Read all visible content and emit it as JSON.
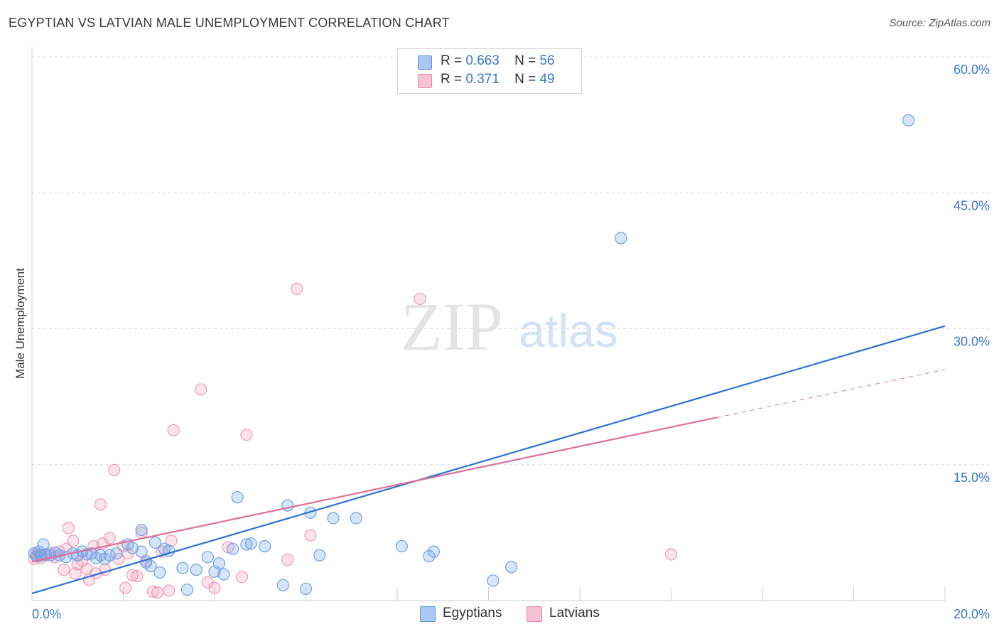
{
  "title": "EGYPTIAN VS LATVIAN MALE UNEMPLOYMENT CORRELATION CHART",
  "source": "Source: ZipAtlas.com",
  "watermark": {
    "zip": "ZIP",
    "atlas": "atlas"
  },
  "legend": {
    "rows": [
      {
        "r_label": "R =",
        "r_value": "0.663",
        "n_label": "N =",
        "n_value": "56",
        "color": "#a9c8f3",
        "border": "#5e93dd"
      },
      {
        "r_label": "R =",
        "r_value": "0.371",
        "n_label": "N =",
        "n_value": "49",
        "color": "#f8c0d3",
        "border": "#e88aab"
      }
    ]
  },
  "bottom_legend": [
    {
      "label": "Egyptians",
      "color": "#a9c8f3",
      "border": "#5e93dd"
    },
    {
      "label": "Latvians",
      "color": "#f8c0d3",
      "border": "#e88aab"
    }
  ],
  "chart_data": {
    "type": "scatter",
    "title": "EGYPTIAN VS LATVIAN MALE UNEMPLOYMENT CORRELATION CHART",
    "xlabel": "",
    "ylabel": "Male Unemployment",
    "xlim": [
      0,
      20
    ],
    "ylim": [
      0,
      60
    ],
    "x_tick_labels": [
      "0.0%",
      "20.0%"
    ],
    "y_ticks": [
      15,
      30,
      45,
      60
    ],
    "y_tick_labels": [
      "15.0%",
      "30.0%",
      "45.0%",
      "60.0%"
    ],
    "grid": true,
    "legend_position": "top-center",
    "series": [
      {
        "name": "Egyptians",
        "color": "#6fa1e6",
        "line_color": "#2e72d2",
        "trend": {
          "x0": 0,
          "y0": 0.8,
          "x1": 20,
          "y1": 30.3
        },
        "points": [
          [
            0.05,
            5.2
          ],
          [
            0.1,
            4.9
          ],
          [
            0.15,
            5.4
          ],
          [
            0.2,
            5.0
          ],
          [
            0.25,
            6.2
          ],
          [
            0.3,
            5.1
          ],
          [
            0.4,
            5.0
          ],
          [
            0.5,
            5.3
          ],
          [
            0.6,
            5.0
          ],
          [
            0.75,
            4.8
          ],
          [
            0.9,
            5.2
          ],
          [
            1.0,
            5.0
          ],
          [
            1.1,
            5.4
          ],
          [
            1.2,
            5.1
          ],
          [
            1.3,
            5.2
          ],
          [
            1.4,
            4.7
          ],
          [
            1.5,
            5.0
          ],
          [
            1.6,
            4.6
          ],
          [
            1.7,
            5.0
          ],
          [
            1.85,
            5.2
          ],
          [
            2.1,
            6.2
          ],
          [
            2.2,
            5.8
          ],
          [
            2.4,
            5.4
          ],
          [
            2.5,
            4.2
          ],
          [
            2.6,
            3.8
          ],
          [
            2.7,
            6.4
          ],
          [
            2.8,
            3.1
          ],
          [
            2.9,
            5.7
          ],
          [
            3.0,
            5.5
          ],
          [
            3.3,
            3.6
          ],
          [
            3.4,
            1.2
          ],
          [
            3.6,
            3.4
          ],
          [
            3.85,
            4.8
          ],
          [
            4.0,
            3.2
          ],
          [
            4.1,
            4.1
          ],
          [
            4.2,
            2.9
          ],
          [
            4.4,
            5.7
          ],
          [
            4.5,
            11.4
          ],
          [
            4.7,
            6.2
          ],
          [
            4.8,
            6.3
          ],
          [
            5.1,
            6.0
          ],
          [
            5.5,
            1.7
          ],
          [
            5.6,
            10.5
          ],
          [
            6.0,
            1.3
          ],
          [
            6.1,
            9.7
          ],
          [
            6.3,
            5.0
          ],
          [
            6.6,
            9.1
          ],
          [
            7.1,
            9.1
          ],
          [
            8.1,
            6.0
          ],
          [
            8.7,
            4.9
          ],
          [
            8.8,
            5.4
          ],
          [
            10.1,
            2.2
          ],
          [
            10.5,
            3.7
          ],
          [
            12.9,
            40.0
          ],
          [
            19.2,
            53.0
          ],
          [
            2.4,
            7.8
          ]
        ]
      },
      {
        "name": "Latvians",
        "color": "#f19ab8",
        "line_color": "#e06e99",
        "trend": {
          "x0": 0,
          "y0": 4.3,
          "x1": 15.0,
          "y1": 20.2
        },
        "trend_dashed": {
          "x0": 15.0,
          "y0": 20.2,
          "x1": 20,
          "y1": 25.5
        },
        "points": [
          [
            0.05,
            4.6
          ],
          [
            0.1,
            5.1
          ],
          [
            0.15,
            4.9
          ],
          [
            0.2,
            4.7
          ],
          [
            0.3,
            5.0
          ],
          [
            0.4,
            5.2
          ],
          [
            0.5,
            4.8
          ],
          [
            0.6,
            5.4
          ],
          [
            0.7,
            3.4
          ],
          [
            0.75,
            5.7
          ],
          [
            0.8,
            8.0
          ],
          [
            0.9,
            6.6
          ],
          [
            0.95,
            3.0
          ],
          [
            1.0,
            4.0
          ],
          [
            1.1,
            4.4
          ],
          [
            1.2,
            3.5
          ],
          [
            1.25,
            2.3
          ],
          [
            1.35,
            6.0
          ],
          [
            1.4,
            3.0
          ],
          [
            1.5,
            10.6
          ],
          [
            1.55,
            6.3
          ],
          [
            1.6,
            3.4
          ],
          [
            1.7,
            6.9
          ],
          [
            1.8,
            14.4
          ],
          [
            1.9,
            4.6
          ],
          [
            2.0,
            6.0
          ],
          [
            2.05,
            1.4
          ],
          [
            2.1,
            5.2
          ],
          [
            2.2,
            2.8
          ],
          [
            2.3,
            2.7
          ],
          [
            2.4,
            7.5
          ],
          [
            2.5,
            4.4
          ],
          [
            2.65,
            1.0
          ],
          [
            2.75,
            0.9
          ],
          [
            2.85,
            5.4
          ],
          [
            3.0,
            1.1
          ],
          [
            3.05,
            6.6
          ],
          [
            3.1,
            18.8
          ],
          [
            3.7,
            23.3
          ],
          [
            3.85,
            2.0
          ],
          [
            4.0,
            1.4
          ],
          [
            4.3,
            5.9
          ],
          [
            4.6,
            2.6
          ],
          [
            4.7,
            18.3
          ],
          [
            5.6,
            4.5
          ],
          [
            5.8,
            34.4
          ],
          [
            6.1,
            7.2
          ],
          [
            8.5,
            33.3
          ],
          [
            14.0,
            5.1
          ]
        ]
      }
    ]
  }
}
